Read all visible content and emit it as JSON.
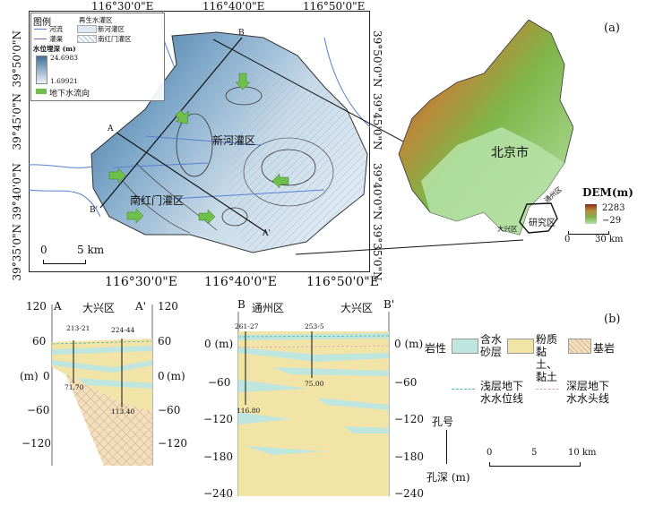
{
  "panel_a": {
    "label": "(a)",
    "map_lon_ticks": [
      "116°30'0\"E",
      "116°40'0\"E",
      "116°50'0\"E"
    ],
    "map_lat_left": [
      "39°50'0\"N",
      "39°45'0\"N",
      "39°40'0\"N",
      "39°35'0\"N"
    ],
    "map_lat_right": [
      "39°50'0\"N",
      "39°45'0\"N",
      "39°40'0\"N",
      "39°35'0\"N"
    ],
    "legend": {
      "title": "图例",
      "river": "河流",
      "canal": "灌渠",
      "recycled_area": "再生水灌区",
      "xinhe_area": "新河灌区",
      "nanhongmen_area": "南红门灌区",
      "depth_title": "水位埋深 (m)",
      "depth_max": "24.6983",
      "depth_min": "1.69921",
      "flow_label": "地下水流向"
    },
    "region_labels": {
      "xinhe": "新河灌区",
      "nanhongmen": "南红门灌区"
    },
    "section_points": {
      "A": "A",
      "A_prime": "A'",
      "B": "B",
      "B_prime": "B'"
    },
    "scale": {
      "zero": "0",
      "five": "5 km"
    },
    "dem": {
      "city": "北京市",
      "study_area": "研究区",
      "tongzhou": "通州区",
      "daxing": "大兴区",
      "legend_title": "DEM(m)",
      "max": "2283",
      "min": "−29",
      "scale_zero": "0",
      "scale_thirty": "30 km"
    },
    "colors": {
      "depth_dark": "#3e6f9c",
      "depth_light": "#dde9f2",
      "dem_low": "#9fd69a",
      "dem_high": "#8b2c14"
    }
  },
  "panel_b": {
    "label": "(b)",
    "sectionA": {
      "left_end": "A",
      "right_end": "A'",
      "district": "大兴区",
      "y_ticks": [
        "120",
        "60",
        "0",
        "−60",
        "−120"
      ],
      "unit": "(m)",
      "wells": [
        {
          "id": "213-21",
          "depth": "71.70"
        },
        {
          "id": "224-44",
          "depth": "113.40"
        }
      ]
    },
    "sectionB": {
      "left_end": "B",
      "right_end": "B'",
      "district_left": "通州区",
      "district_right": "大兴区",
      "y_ticks": [
        "0 (m)",
        "−60",
        "−120",
        "−180",
        "−240"
      ],
      "wells": [
        {
          "id": "261-27",
          "depth": "116.80"
        },
        {
          "id": "253-5",
          "depth": "75.00"
        }
      ]
    },
    "legend": {
      "lithology": "岩性",
      "aquifer": "含水砂层",
      "clay": "粉质黏土、黏土",
      "bedrock": "基岩",
      "shallow": "浅层地下水水位线",
      "deep": "深层地下水水头线",
      "well_no": "孔号",
      "well_depth": "孔深 (m)"
    },
    "scale": {
      "zero": "0",
      "five": "5",
      "ten": "10 km"
    },
    "colors": {
      "aquifer": "#bfe6de",
      "clay": "#f2e3a6",
      "bedrock": "#f3dfbf"
    }
  }
}
